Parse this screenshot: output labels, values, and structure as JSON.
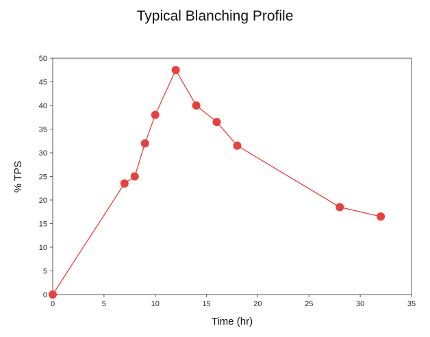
{
  "chart_data": {
    "type": "line",
    "title": "Typical Blanching Profile",
    "xlabel": "Time (hr)",
    "ylabel": "% TPS",
    "xlim": [
      0,
      35
    ],
    "ylim": [
      0,
      50
    ],
    "x_ticks": [
      0,
      5,
      10,
      15,
      20,
      25,
      30,
      35
    ],
    "y_ticks": [
      0,
      5,
      10,
      15,
      20,
      25,
      30,
      35,
      40,
      45,
      50
    ],
    "grid": false,
    "legend": "none",
    "series": [
      {
        "color": "#e8413c",
        "x": [
          0,
          7,
          8,
          9,
          10,
          12,
          14,
          16,
          18,
          28,
          32
        ],
        "y": [
          0,
          23.5,
          25,
          32,
          38,
          47.5,
          40,
          36.5,
          31.5,
          18.5,
          16.5
        ]
      }
    ]
  }
}
